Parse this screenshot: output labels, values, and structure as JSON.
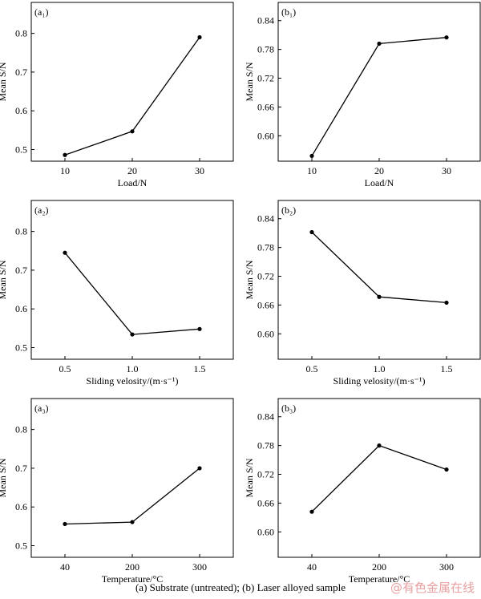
{
  "caption": "(a) Substrate (untreated); (b) Laser alloyed sample",
  "watermark": "@有色金属在线",
  "chart_data": [
    {
      "panel_label": "(a₁)",
      "type": "line",
      "xlabel": "Load/N",
      "ylabel": "Mean S/N",
      "categories": [
        "10",
        "20",
        "30"
      ],
      "values": [
        0.486,
        0.547,
        0.79
      ],
      "ylim": [
        0.47,
        0.88
      ],
      "yticks": [
        0.5,
        0.6,
        0.7,
        0.8
      ],
      "ytick_labels": [
        "0.5",
        "0.6",
        "0.7",
        "0.8"
      ]
    },
    {
      "panel_label": "(b₁)",
      "type": "line",
      "xlabel": "Load/N",
      "ylabel": "Mean S/N",
      "categories": [
        "10",
        "20",
        "30"
      ],
      "values": [
        0.558,
        0.792,
        0.805
      ],
      "ylim": [
        0.547,
        0.878
      ],
      "yticks": [
        0.6,
        0.66,
        0.72,
        0.78,
        0.84
      ],
      "ytick_labels": [
        "0.60",
        "0.66",
        "0.72",
        "0.78",
        "0.84"
      ]
    },
    {
      "panel_label": "(a₂)",
      "type": "line",
      "xlabel": "Sliding velosity/(m·s⁻¹)",
      "ylabel": "Mean S/N",
      "categories": [
        "0.5",
        "1.0",
        "1.5"
      ],
      "values": [
        0.745,
        0.534,
        0.548
      ],
      "ylim": [
        0.47,
        0.88
      ],
      "yticks": [
        0.5,
        0.6,
        0.7,
        0.8
      ],
      "ytick_labels": [
        "0.5",
        "0.6",
        "0.7",
        "0.8"
      ]
    },
    {
      "panel_label": "(b₂)",
      "type": "line",
      "xlabel": "Sliding velosity/(m·s⁻¹)",
      "ylabel": "Mean S/N",
      "categories": [
        "0.5",
        "1.0",
        "1.5"
      ],
      "values": [
        0.812,
        0.677,
        0.665
      ],
      "ylim": [
        0.547,
        0.878
      ],
      "yticks": [
        0.6,
        0.66,
        0.72,
        0.78,
        0.84
      ],
      "ytick_labels": [
        "0.60",
        "0.66",
        "0.72",
        "0.78",
        "0.84"
      ]
    },
    {
      "panel_label": "(a₃)",
      "type": "line",
      "xlabel": "Temperature/°C",
      "ylabel": "Mean S/N",
      "categories": [
        "40",
        "200",
        "300"
      ],
      "values": [
        0.556,
        0.561,
        0.7
      ],
      "ylim": [
        0.47,
        0.88
      ],
      "yticks": [
        0.5,
        0.6,
        0.7,
        0.8
      ],
      "ytick_labels": [
        "0.5",
        "0.6",
        "0.7",
        "0.8"
      ]
    },
    {
      "panel_label": "(b₃)",
      "type": "line",
      "xlabel": "Temperature/°C",
      "ylabel": "Mean S/N",
      "categories": [
        "40",
        "200",
        "300"
      ],
      "values": [
        0.642,
        0.78,
        0.73
      ],
      "ylim": [
        0.547,
        0.878
      ],
      "yticks": [
        0.6,
        0.66,
        0.72,
        0.78,
        0.84
      ],
      "ytick_labels": [
        "0.60",
        "0.66",
        "0.72",
        "0.78",
        "0.84"
      ]
    }
  ]
}
